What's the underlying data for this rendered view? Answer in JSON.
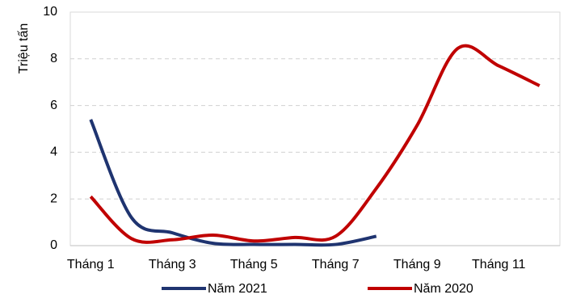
{
  "chart_data": {
    "type": "line",
    "y_label": "Triệu tấn",
    "categories": [
      "Tháng 1",
      null,
      "Tháng 3",
      null,
      "Tháng 5",
      null,
      "Tháng 7",
      null,
      "Tháng 9",
      null,
      "Tháng 11",
      null
    ],
    "series": [
      {
        "name": "Năm 2021",
        "color": "#1f3470",
        "values": [
          5.4,
          1.2,
          0.55,
          0.1,
          0.05,
          0.05,
          0.05,
          0.4,
          null,
          null,
          null,
          null
        ]
      },
      {
        "name": "Năm 2020",
        "color": "#c00000",
        "values": [
          2.1,
          0.3,
          0.25,
          0.45,
          0.2,
          0.35,
          0.4,
          2.45,
          5.15,
          8.45,
          7.7,
          6.85
        ]
      }
    ],
    "ylim": [
      0,
      10
    ],
    "yticks": [
      0,
      2,
      4,
      6,
      8,
      10
    ],
    "grid": true,
    "smooth": true,
    "legend": "bottom"
  }
}
